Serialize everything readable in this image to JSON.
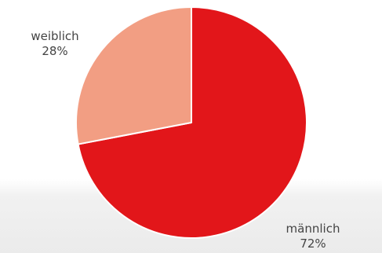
{
  "chart_data": {
    "type": "pie",
    "slices": [
      {
        "label": "männlich",
        "value": 72,
        "value_label": "72%",
        "color": "#e2161a"
      },
      {
        "label": "weiblich",
        "value": 28,
        "value_label": "28%",
        "color": "#f29e83"
      }
    ]
  }
}
